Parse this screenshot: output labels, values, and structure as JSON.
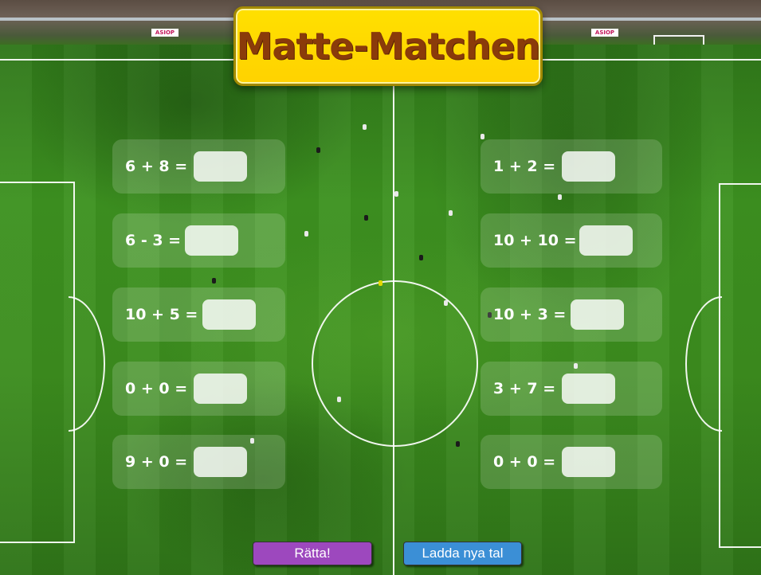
{
  "game": {
    "title": "Matte-Matchen",
    "ad_text": "ASIOP"
  },
  "problems_left": [
    {
      "expression": "6 + 8 =",
      "answer": ""
    },
    {
      "expression": "6 - 3 =",
      "answer": ""
    },
    {
      "expression": "10 + 5 =",
      "answer": ""
    },
    {
      "expression": "0 + 0 =",
      "answer": ""
    },
    {
      "expression": "9 + 0 =",
      "answer": ""
    }
  ],
  "problems_right": [
    {
      "expression": "1 + 2 =",
      "answer": ""
    },
    {
      "expression": "10 + 10 =",
      "answer": ""
    },
    {
      "expression": "10 + 3 =",
      "answer": ""
    },
    {
      "expression": "3 + 7 =",
      "answer": ""
    },
    {
      "expression": "0 + 0 =",
      "answer": ""
    }
  ],
  "buttons": {
    "check_label": "Rätta!",
    "reload_label": "Ladda nya tal",
    "check_color": "#9d48be",
    "reload_color": "#3b8fd6"
  },
  "colors": {
    "title_bg": "#ffd200",
    "title_text": "#8a3b0a",
    "pitch": "#3c8d1e"
  }
}
